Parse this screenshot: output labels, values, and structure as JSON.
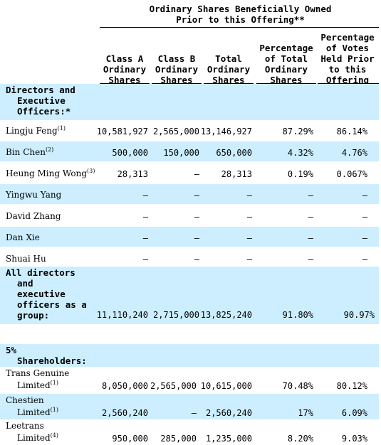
{
  "header": {
    "super_line1": "Ordinary Shares Beneficially Owned",
    "super_line2": "Prior to this Offering**",
    "columns": [
      {
        "lines": [
          "Class A",
          "Ordinary",
          "Shares"
        ]
      },
      {
        "lines": [
          "Class B",
          "Ordinary",
          "Shares"
        ]
      },
      {
        "lines": [
          "Total",
          "Ordinary",
          "Shares"
        ]
      },
      {
        "lines": [
          "Percentage",
          "of Total",
          "Ordinary",
          "Shares"
        ]
      },
      {
        "lines": [
          "Percentage",
          "of Votes",
          "Held Prior",
          "to this",
          "Offering"
        ]
      }
    ]
  },
  "sections": {
    "directors_heading": [
      "Directors and",
      "Executive",
      "Officers:*"
    ],
    "all_directors_label": [
      "All directors",
      "and",
      "executive",
      "officers as a",
      "group:"
    ],
    "shareholders_heading": [
      "5%",
      "Shareholders:"
    ]
  },
  "rows": [
    {
      "name": "Lingju Feng",
      "note": "(1)",
      "class_a": "10,581,927",
      "class_b": "2,565,000",
      "total": "13,146,927",
      "pct_total": "87.29%",
      "pct_votes": "86.14%"
    },
    {
      "name": "Bin Chen",
      "note": "(2)",
      "class_a": "500,000",
      "class_b": "150,000",
      "total": "650,000",
      "pct_total": "4.32%",
      "pct_votes": "4.76%"
    },
    {
      "name": "Heung Ming Wong",
      "note": "(3)",
      "class_a": "28,313",
      "class_b": "—",
      "total": "28,313",
      "pct_total": "0.19%",
      "pct_votes": "0.067%"
    },
    {
      "name": "Yingwu Yang",
      "note": "",
      "class_a": "—",
      "class_b": "—",
      "total": "—",
      "pct_total": "—",
      "pct_votes": "—"
    },
    {
      "name": "David Zhang",
      "note": "",
      "class_a": "—",
      "class_b": "—",
      "total": "—",
      "pct_total": "—",
      "pct_votes": "—"
    },
    {
      "name": "Dan Xie",
      "note": "",
      "class_a": "—",
      "class_b": "—",
      "total": "—",
      "pct_total": "—",
      "pct_votes": "—"
    },
    {
      "name": "Shuai Hu",
      "note": "",
      "class_a": "—",
      "class_b": "—",
      "total": "—",
      "pct_total": "—",
      "pct_votes": "—"
    }
  ],
  "group_row": {
    "class_a": "11,110,240",
    "class_b": "2,715,000",
    "total": "13,825,240",
    "pct_total": "91.80%",
    "pct_votes": "90.97%"
  },
  "holders": [
    {
      "name1": "Trans Genuine",
      "name2": "Limited",
      "note": "(1)",
      "class_a": "8,050,000",
      "class_b": "2,565,000",
      "total": "10,615,000",
      "pct_total": "70.48%",
      "pct_votes": "80.12%"
    },
    {
      "name1": "Chestien",
      "name2": "Limited",
      "note": "(1)",
      "class_a": "2,560,240",
      "class_b": "—",
      "total": "2,560,240",
      "pct_total": "17%",
      "pct_votes": "6.09%"
    },
    {
      "name1": "Leetrans",
      "name2": "Limited",
      "note": "(4)",
      "class_a": "950,000",
      "class_b": "285,000",
      "total": "1,235,000",
      "pct_total": "8.20%",
      "pct_votes": "9.03%"
    }
  ]
}
